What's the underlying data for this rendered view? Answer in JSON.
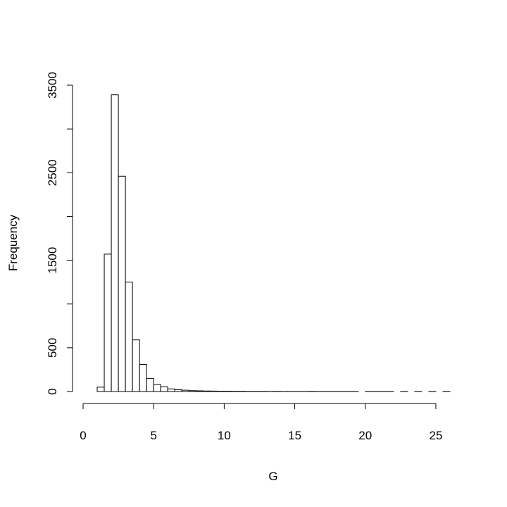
{
  "chart_data": {
    "type": "histogram",
    "x_label": "G",
    "y_label": "Frequency",
    "bins": [
      1,
      1.5,
      2,
      2.5,
      3,
      3.5,
      4,
      4.5,
      5,
      5.5,
      6,
      6.5,
      7,
      7.5,
      8,
      8.5,
      9,
      9.5,
      10,
      10.5,
      11,
      11.5,
      12,
      12.5,
      13,
      13.5,
      14,
      14.5,
      15,
      15.5,
      16,
      16.5,
      17,
      17.5,
      18,
      18.5,
      19,
      19.5,
      20,
      20.5,
      21,
      21.5,
      22,
      22.5,
      23,
      23.5,
      24,
      24.5,
      25,
      25.5,
      26
    ],
    "values": [
      50,
      1570,
      3390,
      2460,
      1250,
      590,
      310,
      150,
      80,
      55,
      30,
      20,
      15,
      10,
      8,
      6,
      5,
      4,
      4,
      3,
      3,
      2,
      2,
      2,
      1,
      2,
      1,
      1,
      1,
      1,
      2,
      1,
      1,
      1,
      1,
      1,
      1,
      0,
      1,
      1,
      1,
      1,
      0,
      1,
      0,
      1,
      0,
      1,
      0,
      1
    ],
    "color": "#ffffff",
    "xlim": [
      0,
      26
    ],
    "xticks": [
      0,
      5,
      10,
      15,
      20,
      25
    ],
    "ylim": [
      0,
      3500
    ],
    "yticks": [
      0,
      500,
      1000,
      1500,
      2000,
      2500,
      3000,
      3500
    ],
    "grid": false
  }
}
